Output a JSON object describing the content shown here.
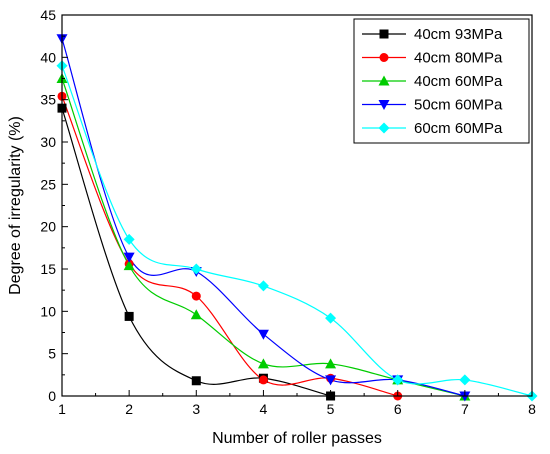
{
  "chart_data": {
    "type": "line",
    "xlabel": "Number of roller passes",
    "ylabel": "Degree of irregularity (%)",
    "xlim": [
      1,
      8
    ],
    "ylim": [
      0,
      45
    ],
    "xticks": [
      1,
      2,
      3,
      4,
      5,
      6,
      7,
      8
    ],
    "yticks": [
      0,
      5,
      10,
      15,
      20,
      25,
      30,
      35,
      40,
      45
    ],
    "grid": false,
    "legend_position": "top-right",
    "series": [
      {
        "name": "40cm 93MPa",
        "color": "#000000",
        "marker": "square",
        "x": [
          1,
          2,
          3,
          4,
          5
        ],
        "y": [
          34,
          9.4,
          1.8,
          2.1,
          0
        ]
      },
      {
        "name": "40cm 80MPa",
        "color": "#ff0000",
        "marker": "circle",
        "x": [
          1,
          2,
          3,
          4,
          5,
          6
        ],
        "y": [
          35.4,
          15.6,
          11.8,
          1.9,
          2.1,
          0
        ]
      },
      {
        "name": "40cm 60MPa",
        "color": "#00cc00",
        "marker": "triangle-up",
        "x": [
          1,
          2,
          3,
          4,
          5,
          6,
          7
        ],
        "y": [
          37.5,
          15.4,
          9.6,
          3.8,
          3.8,
          1.9,
          0
        ]
      },
      {
        "name": "50cm 60MPa",
        "color": "#0000ff",
        "marker": "triangle-down",
        "x": [
          1,
          2,
          3,
          4,
          5,
          6,
          7
        ],
        "y": [
          42.2,
          16.4,
          14.7,
          7.3,
          1.9,
          1.9,
          0
        ]
      },
      {
        "name": "60cm 60MPa",
        "color": "#00ffff",
        "marker": "diamond",
        "x": [
          1,
          2,
          3,
          4,
          5,
          6,
          7,
          8
        ],
        "y": [
          39,
          18.5,
          15,
          13,
          9.2,
          1.9,
          1.9,
          0
        ]
      }
    ]
  }
}
